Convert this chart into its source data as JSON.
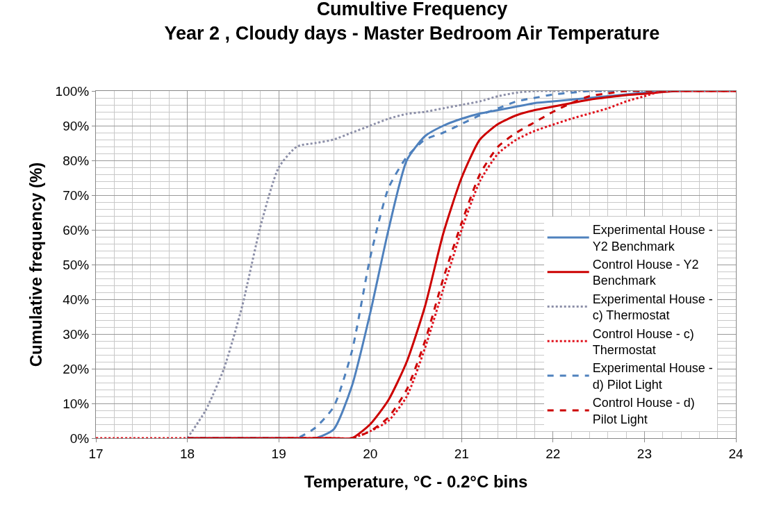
{
  "chart_data": {
    "type": "line",
    "title": "Cumultive Frequency",
    "subtitle": "Year 2 , Cloudy days - Master Bedroom Air Temperature",
    "xlabel": "Temperature, °C - 0.2°C bins",
    "ylabel": "Cumulative frequency (%)",
    "x": [
      17,
      17.2,
      17.4,
      17.6,
      17.8,
      18,
      18.2,
      18.4,
      18.6,
      18.8,
      19,
      19.2,
      19.4,
      19.6,
      19.8,
      20,
      20.2,
      20.4,
      20.6,
      20.8,
      21,
      21.2,
      21.4,
      21.6,
      21.8,
      22,
      22.2,
      22.4,
      22.6,
      22.8,
      23,
      23.2,
      23.4,
      23.6,
      23.8,
      24
    ],
    "series": [
      {
        "name": "Experimental House - Y2 Benchmark",
        "color": "#4f81bd",
        "line_style": "solid",
        "x": [
          18,
          18.2,
          18.4,
          18.6,
          18.8,
          19,
          19.2,
          19.4,
          19.6,
          19.8,
          20,
          20.2,
          20.4,
          20.6,
          20.8,
          21,
          21.2,
          21.4,
          21.6,
          21.8,
          22,
          22.2,
          22.4,
          22.6,
          22.8,
          23,
          23.2,
          23.4
        ],
        "values": [
          0,
          0,
          0,
          0,
          0,
          0,
          0,
          0,
          2.5,
          15,
          36,
          60,
          80,
          87,
          90,
          92,
          93.5,
          94.5,
          95.5,
          96.5,
          97,
          97.5,
          98,
          98.5,
          99,
          99.5,
          100,
          100
        ]
      },
      {
        "name": "Control House - Y2 Benchmark",
        "color": "#cc0000",
        "line_style": "solid",
        "x": [
          18,
          18.2,
          18.4,
          18.6,
          18.8,
          19,
          19.2,
          19.4,
          19.6,
          19.8,
          20,
          20.2,
          20.4,
          20.6,
          20.8,
          21,
          21.2,
          21.4,
          21.6,
          21.8,
          22,
          22.2,
          22.4,
          22.6,
          22.8,
          23,
          23.2,
          23.4,
          23.6,
          23.8,
          24
        ],
        "values": [
          0,
          0,
          0,
          0,
          0,
          0,
          0,
          0,
          0,
          0,
          4,
          11,
          22,
          38,
          59,
          75,
          86,
          90.5,
          93,
          94.5,
          95.5,
          96.5,
          97.5,
          98.2,
          98.8,
          99.2,
          99.7,
          100,
          100,
          100,
          100
        ]
      },
      {
        "name": "Experimental House - c) Thermostat",
        "color": "#8c8fa8",
        "line_style": "dotted",
        "x": [
          18,
          18.2,
          18.4,
          18.6,
          18.8,
          19,
          19.2,
          19.4,
          19.6,
          19.8,
          20,
          20.2,
          20.4,
          20.6,
          20.8,
          21,
          21.2,
          21.4,
          21.6,
          21.8,
          22,
          22.2,
          22.4,
          22.6,
          22.8,
          23,
          23.2,
          23.4,
          23.6,
          23.8,
          24
        ],
        "values": [
          0,
          8,
          20,
          38,
          61,
          78,
          84,
          85,
          86,
          88,
          90,
          92,
          93.4,
          94,
          95,
          96,
          97,
          98.5,
          99.5,
          100,
          100,
          100,
          100,
          100,
          100,
          100,
          100,
          100,
          100,
          100,
          100
        ]
      },
      {
        "name": "Control House - c) Thermostat",
        "color": "#e0101b",
        "line_style": "dotted",
        "values": [
          0,
          0,
          0,
          0,
          0,
          0,
          0,
          0,
          0,
          0,
          0,
          0,
          0,
          0,
          0,
          2,
          5,
          12,
          26,
          43,
          60,
          74,
          82,
          86,
          88.5,
          90.3,
          92,
          93.5,
          95,
          97,
          98.5,
          100,
          100,
          100,
          100,
          100
        ]
      },
      {
        "name": "Experimental House - d) Pilot Light",
        "color": "#4f81bd",
        "line_style": "dashed",
        "x": [
          18,
          18.2,
          18.4,
          18.6,
          18.8,
          19,
          19.2,
          19.4,
          19.6,
          19.8,
          20,
          20.2,
          20.4,
          20.6,
          20.8,
          21,
          21.2,
          21.4,
          21.6,
          21.8,
          22,
          22.2,
          22.4,
          22.6,
          22.8,
          23,
          23.2,
          23.4
        ],
        "values": [
          0,
          0,
          0,
          0,
          0,
          0,
          0,
          3,
          9,
          25,
          52,
          72,
          81,
          86,
          88,
          90.5,
          93,
          95,
          97,
          98,
          99,
          99.5,
          100,
          100,
          100,
          100,
          100,
          100
        ]
      },
      {
        "name": "Control House - d) Pilot Light",
        "color": "#cc0000",
        "line_style": "dashed",
        "x": [
          18,
          18.2,
          18.4,
          18.6,
          18.8,
          19,
          19.2,
          19.4,
          19.6,
          19.8,
          20,
          20.2,
          20.4,
          20.6,
          20.8,
          21,
          21.2,
          21.4,
          21.6,
          21.8,
          22,
          22.2,
          22.4,
          22.6,
          22.8,
          23,
          23.2,
          23.4,
          23.6,
          23.8,
          24
        ],
        "values": [
          0,
          0,
          0,
          0,
          0,
          0,
          0,
          0,
          0,
          0,
          2,
          6,
          14,
          28,
          46,
          62,
          76,
          84,
          88,
          91,
          94,
          96.5,
          98.5,
          99.3,
          100,
          100,
          100,
          100,
          100,
          100,
          100
        ]
      }
    ],
    "xlim": [
      17,
      24
    ],
    "xticks": [
      17,
      18,
      19,
      20,
      21,
      22,
      23,
      24
    ],
    "ylim": [
      0,
      100
    ],
    "yticks": [
      {
        "value": 0,
        "label": "0%"
      },
      {
        "value": 10,
        "label": "10%"
      },
      {
        "value": 20,
        "label": "20%"
      },
      {
        "value": 30,
        "label": "30%"
      },
      {
        "value": 40,
        "label": "40%"
      },
      {
        "value": 50,
        "label": "50%"
      },
      {
        "value": 60,
        "label": "60%"
      },
      {
        "value": 70,
        "label": "70%"
      },
      {
        "value": 80,
        "label": "80%"
      },
      {
        "value": 90,
        "label": "90%"
      },
      {
        "value": 100,
        "label": "100%"
      }
    ],
    "grid": true,
    "legend": "bottom right",
    "marker": "none"
  }
}
